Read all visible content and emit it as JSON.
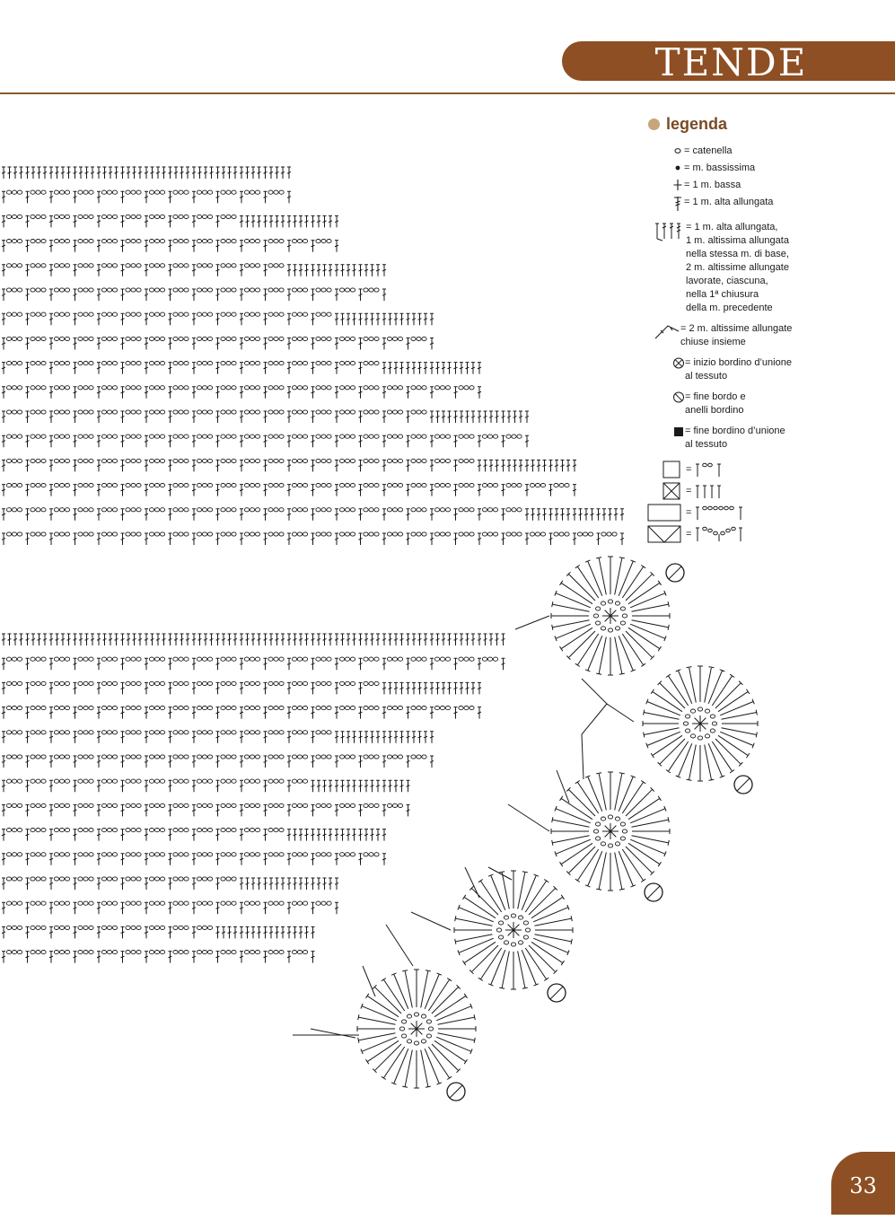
{
  "header": {
    "section_title": "TENDE"
  },
  "legend": {
    "title": "legenda",
    "items": [
      {
        "icon": "chain-stitch-icon",
        "text": "= catenella"
      },
      {
        "icon": "slip-stitch-icon",
        "text": "= m. bassissima"
      },
      {
        "icon": "single-crochet-icon",
        "text": "= 1 m. bassa"
      },
      {
        "icon": "extended-double-crochet-icon",
        "text": "= 1 m. alta allungata"
      },
      {
        "icon": "stitch-cluster-icon",
        "text": "= 1 m. alta allungata,\n1 m. altissima allungata\nnella stessa m. di base,\n2 m. altissime allungate\nlavorate, ciascuna,\nnella 1ª chiusura\ndella m. precedente"
      },
      {
        "icon": "joined-treble-icon",
        "text": "= 2 m. altissime allungate\n   chiuse insieme"
      },
      {
        "icon": "start-edging-icon",
        "text": "= inizio bordino d’unione\nal tessuto"
      },
      {
        "icon": "end-edging-icon",
        "text": "= fine bordo e\nanelli bordino"
      },
      {
        "icon": "end-joining-edging-icon",
        "text": "= fine bordino d’unione\nal tessuto"
      },
      {
        "icon": "open-mesh-icon",
        "text": "="
      },
      {
        "icon": "filled-mesh-icon",
        "text": "="
      },
      {
        "icon": "wide-open-mesh-icon",
        "text": "="
      },
      {
        "icon": "wide-lacet-icon",
        "text": "="
      }
    ]
  },
  "footer": {
    "page_number": "33"
  },
  "colors": {
    "accent": "#8d4f23",
    "rule": "#8a5a2b",
    "legend_dot": "#c9a57a",
    "ink": "#1a1a1a"
  }
}
